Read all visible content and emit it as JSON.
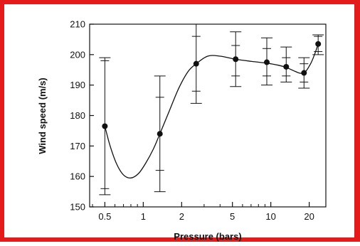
{
  "chart_data": {
    "type": "scatter",
    "title": "",
    "xlabel": "Pressure (bars)",
    "ylabel": "Wind speed (m/s)",
    "x_scale": "log",
    "xlim": [
      0.38,
      27
    ],
    "ylim": [
      150,
      210
    ],
    "x_ticks": [
      0.5,
      1,
      2,
      5,
      10,
      20
    ],
    "x_tick_labels": [
      "0.5",
      "1",
      "2",
      "5",
      "10",
      "20"
    ],
    "y_ticks": [
      150,
      160,
      170,
      180,
      190,
      200,
      210
    ],
    "y_tick_labels": [
      "150",
      "160",
      "170",
      "180",
      "190",
      "200",
      "210"
    ],
    "grid": false,
    "points": [
      {
        "x": 0.5,
        "y": 176.5,
        "err_outer": [
          154,
          199
        ],
        "err_inner": [
          156,
          198
        ]
      },
      {
        "x": 1.35,
        "y": 174,
        "err_outer": [
          155,
          193
        ],
        "err_inner": [
          162,
          186
        ]
      },
      {
        "x": 2.6,
        "y": 197,
        "err_outer": [
          184,
          210
        ],
        "err_inner": [
          188,
          206
        ]
      },
      {
        "x": 5.3,
        "y": 198.5,
        "err_outer": [
          189.5,
          207.5
        ],
        "err_inner": [
          193,
          203
        ]
      },
      {
        "x": 9.3,
        "y": 197.5,
        "err_outer": [
          190,
          205.5
        ],
        "err_inner": [
          193,
          202
        ]
      },
      {
        "x": 13.2,
        "y": 196,
        "err_outer": [
          191,
          202.5
        ],
        "err_inner": [
          193,
          199
        ]
      },
      {
        "x": 18.2,
        "y": 194,
        "err_outer": [
          189,
          199
        ],
        "err_inner": [
          191,
          197
        ]
      },
      {
        "x": 23.5,
        "y": 203.5,
        "err_outer": [
          200,
          206.5
        ],
        "err_inner": [
          201,
          206
        ]
      }
    ],
    "fit_curve": [
      [
        0.5,
        176.5
      ],
      [
        0.55,
        170
      ],
      [
        0.62,
        164
      ],
      [
        0.7,
        160.5
      ],
      [
        0.8,
        159.5
      ],
      [
        0.92,
        161
      ],
      [
        1.05,
        164.5
      ],
      [
        1.2,
        169
      ],
      [
        1.35,
        174
      ],
      [
        1.6,
        181.5
      ],
      [
        1.9,
        189
      ],
      [
        2.25,
        194.5
      ],
      [
        2.6,
        197
      ],
      [
        3.2,
        199.5
      ],
      [
        4.0,
        199.5
      ],
      [
        5.3,
        198.5
      ],
      [
        7.0,
        197.8
      ],
      [
        9.3,
        197.2
      ],
      [
        11.5,
        196.5
      ],
      [
        13.2,
        195.8
      ],
      [
        15.5,
        194.5
      ],
      [
        17.0,
        193.9
      ],
      [
        18.5,
        194.2
      ],
      [
        20.5,
        197
      ],
      [
        22.0,
        200
      ],
      [
        23.5,
        203.5
      ]
    ],
    "colors": {
      "frame_border": "#e31b1b",
      "ink": "#111111"
    }
  }
}
